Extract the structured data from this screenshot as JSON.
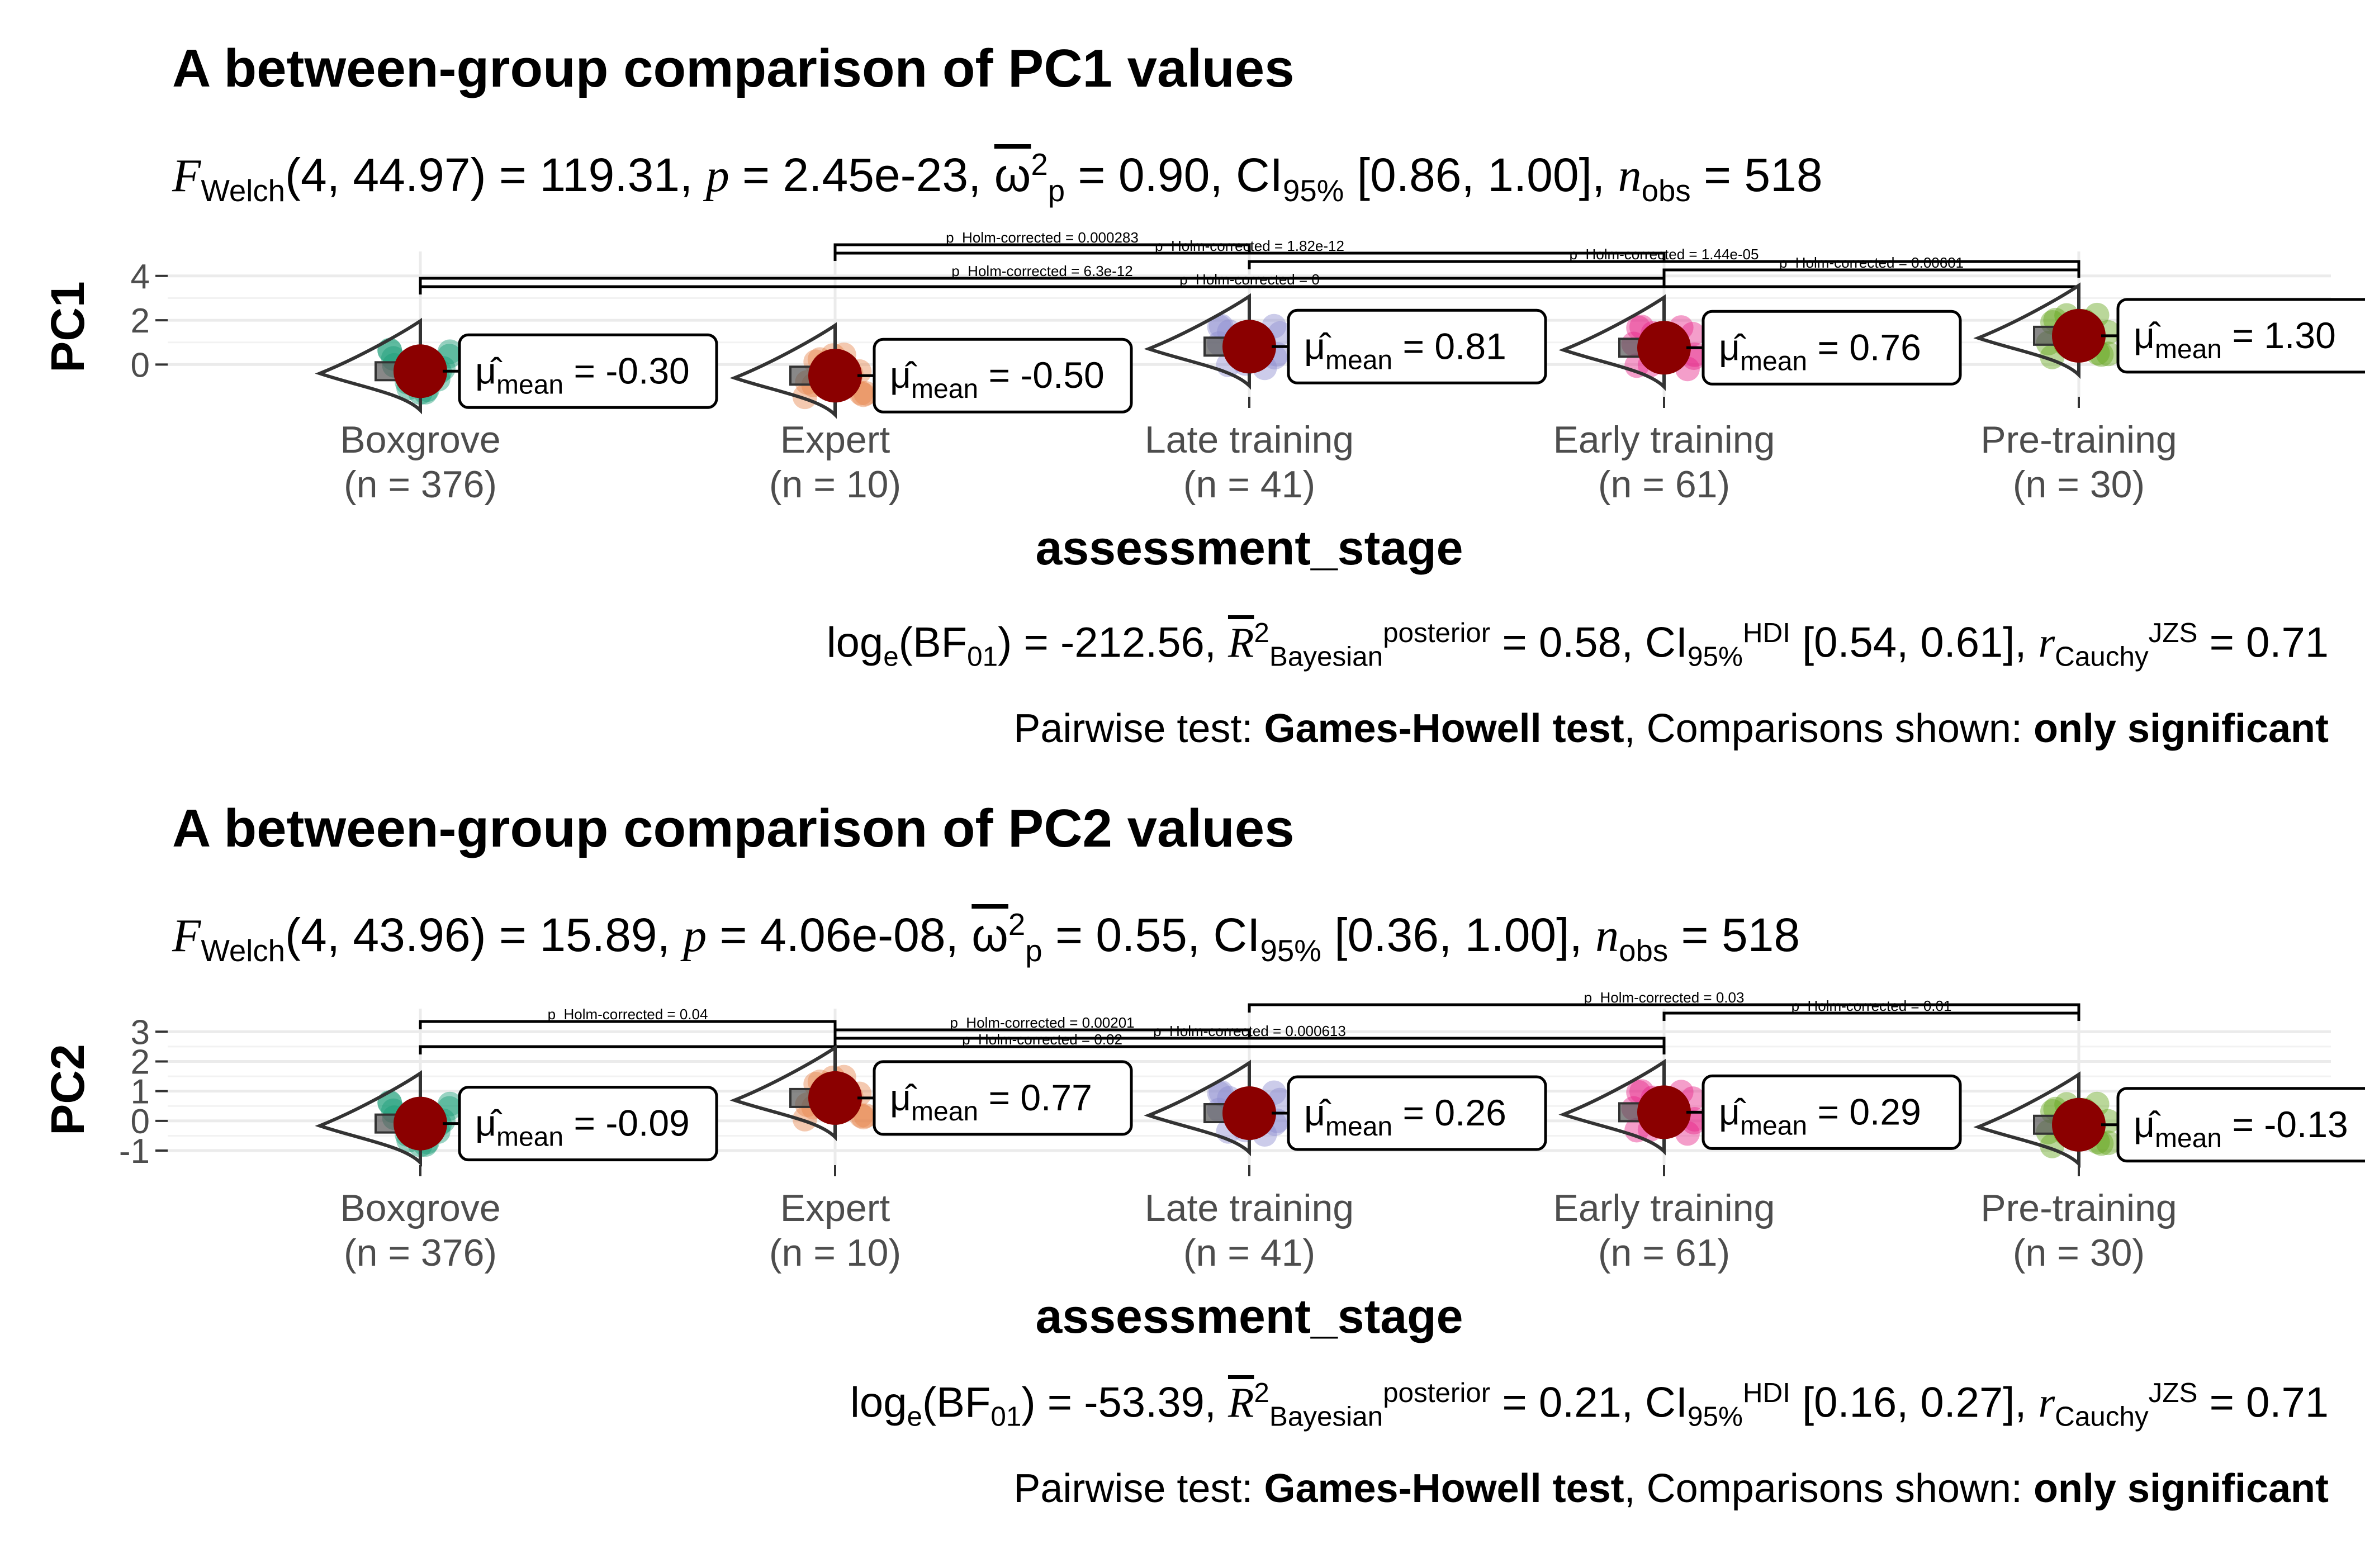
{
  "chart_data": [
    {
      "type": "violin",
      "title": "A between-group comparison of PC1 values",
      "subtitle": "F_Welch(4, 44.97) = 119.31, p = 2.45e-23, ω̂²_p = 0.90, CI95% [0.86, 1.00], n_obs = 518",
      "stats": {
        "stat_name": "F",
        "stat_sub": "Welch",
        "df": "4, 44.97",
        "stat_value": "119.31",
        "p": "2.45e-23",
        "effect_value": "0.90",
        "ci": "[0.86, 1.00]",
        "n_obs": "518"
      },
      "bayes": {
        "bf_value": "-212.56",
        "r2_value": "0.58",
        "ci": "[0.54, 0.61]",
        "r_value": "0.71"
      },
      "caption": {
        "prefix": "Pairwise test: ",
        "test": "Games-Howell test",
        "middle": ", Comparisons shown: ",
        "shown": "only significant"
      },
      "xlabel": "assessment_stage",
      "ylabel": "PC1",
      "ylim": [
        -1.2,
        4.6
      ],
      "yticks": [
        0,
        2,
        4
      ],
      "ytick_labels": [
        "0",
        "2",
        "4"
      ],
      "grid": true,
      "categories": [
        "Boxgrove",
        "Expert",
        "Late training",
        "Early training",
        "Pre-training"
      ],
      "n_labels": [
        "(n = 376)",
        "(n = 10)",
        "(n = 41)",
        "(n = 61)",
        "(n = 30)"
      ],
      "means": [
        -0.3,
        -0.5,
        0.81,
        0.76,
        1.3
      ],
      "mean_labels": [
        "-0.30",
        "-0.50",
        "0.81",
        "0.76",
        "1.30"
      ],
      "colors": [
        "#1b9e77",
        "#e6874f",
        "#8f8fd0",
        "#e7298a",
        "#66a61e"
      ],
      "mean_color": "#8b0000",
      "pairwise": [
        {
          "from": 1,
          "to": 2,
          "label": "p_Holm-corrected = 0.000283"
        },
        {
          "from": 1,
          "to": 3,
          "label": "p_Holm-corrected = 1.82e-12"
        },
        {
          "from": 2,
          "to": 4,
          "label": "p_Holm-corrected = 1.44e-05"
        },
        {
          "from": 3,
          "to": 4,
          "label": "p_Holm-corrected = 0.00601"
        },
        {
          "from": 0,
          "to": 3,
          "label": "p_Holm-corrected = 6.3e-12"
        },
        {
          "from": 0,
          "to": 4,
          "label": "p_Holm-corrected = 0"
        }
      ]
    },
    {
      "type": "violin",
      "title": "A between-group comparison of PC2 values",
      "subtitle": "F_Welch(4, 43.96) = 15.89, p = 4.06e-08, ω̂²_p = 0.55, CI95% [0.36, 1.00], n_obs = 518",
      "stats": {
        "stat_name": "F",
        "stat_sub": "Welch",
        "df": "4, 43.96",
        "stat_value": "15.89",
        "p": "4.06e-08",
        "effect_value": "0.55",
        "ci": "[0.36, 1.00]",
        "n_obs": "518"
      },
      "bayes": {
        "bf_value": "-53.39",
        "r2_value": "0.21",
        "ci": "[0.16, 0.27]",
        "r_value": "0.71"
      },
      "caption": {
        "prefix": "Pairwise test: ",
        "test": "Games-Howell test",
        "middle": ", Comparisons shown: ",
        "shown": "only significant"
      },
      "xlabel": "assessment_stage",
      "ylabel": "PC2",
      "ylim": [
        -1.3,
        3.4
      ],
      "yticks": [
        -1,
        0,
        1,
        2,
        3
      ],
      "ytick_labels": [
        "-1",
        "0",
        "1",
        "2",
        "3"
      ],
      "grid": true,
      "categories": [
        "Boxgrove",
        "Expert",
        "Late training",
        "Early training",
        "Pre-training"
      ],
      "n_labels": [
        "(n = 376)",
        "(n = 10)",
        "(n = 41)",
        "(n = 61)",
        "(n = 30)"
      ],
      "means": [
        -0.09,
        0.77,
        0.26,
        0.29,
        -0.13
      ],
      "mean_labels": [
        "-0.09",
        "0.77",
        "0.26",
        "0.29",
        "-0.13"
      ],
      "colors": [
        "#1b9e77",
        "#e6874f",
        "#8f8fd0",
        "#e7298a",
        "#66a61e"
      ],
      "mean_color": "#8b0000",
      "pairwise": [
        {
          "from": 2,
          "to": 4,
          "label": "p_Holm-corrected = 0.03"
        },
        {
          "from": 3,
          "to": 4,
          "label": "p_Holm-corrected = 0.01"
        },
        {
          "from": 0,
          "to": 1,
          "label": "p_Holm-corrected = 0.04"
        },
        {
          "from": 1,
          "to": 2,
          "label": "p_Holm-corrected = 0.00201"
        },
        {
          "from": 1,
          "to": 3,
          "label": "p_Holm-corrected = 0.000613"
        },
        {
          "from": 0,
          "to": 3,
          "label": "p_Holm-corrected = 0.02"
        }
      ]
    }
  ]
}
